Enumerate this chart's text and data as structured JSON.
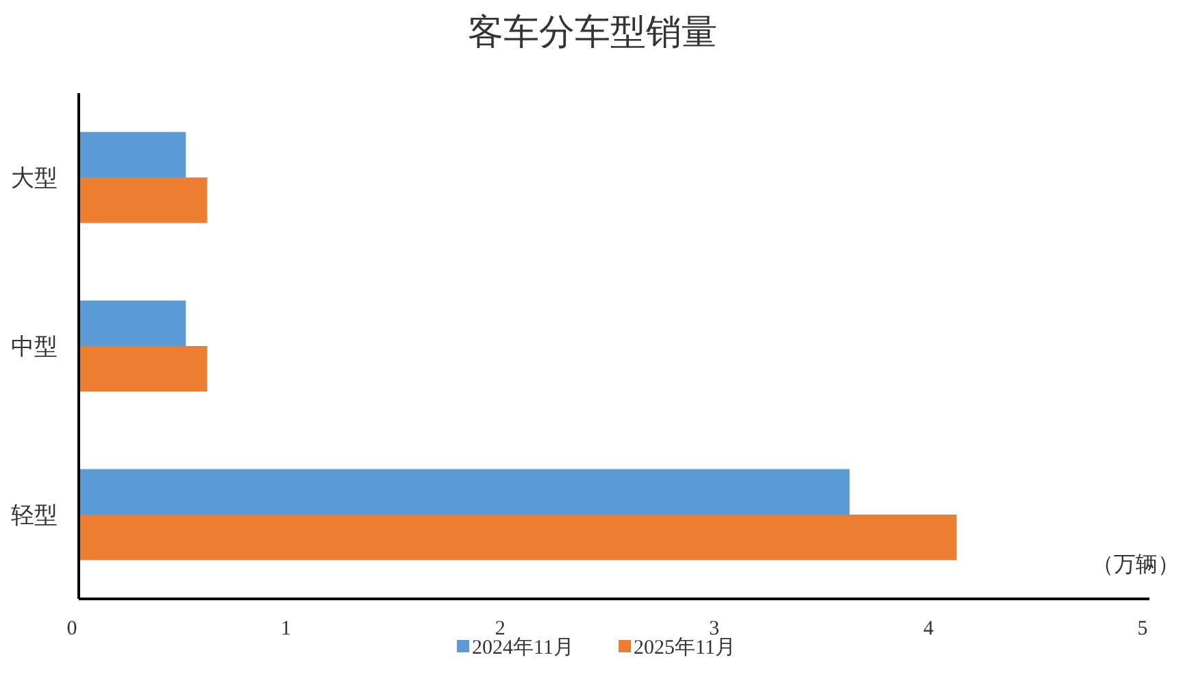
{
  "chart_data": {
    "type": "bar",
    "orientation": "horizontal",
    "title": "客车分车型销量",
    "xlabel": "（万辆）",
    "categories": [
      "大型",
      "中型",
      "轻型"
    ],
    "series": [
      {
        "name": "2024年11月",
        "color": "#5b9bd5",
        "values": [
          0.5,
          0.5,
          3.6
        ]
      },
      {
        "name": "2025年11月",
        "color": "#ed7d31",
        "values": [
          0.6,
          0.6,
          4.1
        ]
      }
    ],
    "xlim": [
      0,
      5
    ],
    "xticks": [
      0,
      1,
      2,
      3,
      4,
      5
    ],
    "grid": false,
    "legend": "bottom"
  }
}
